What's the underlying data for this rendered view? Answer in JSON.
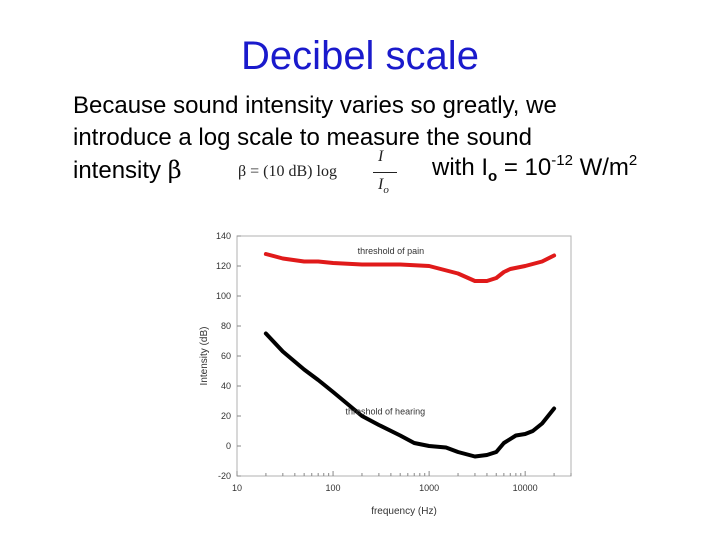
{
  "slide": {
    "title": "Decibel scale",
    "line1": "Because sound intensity varies so greatly, we",
    "line2": "introduce a log scale to measure the sound",
    "line3_text": "intensity ",
    "beta_symbol": "β",
    "formula": {
      "lhs": "β = (10 dB) log",
      "numerator": "I",
      "denominator": "I",
      "denominator_sub": "o"
    },
    "with_text": "with I",
    "with_sub": "o",
    "with_eq": " = 10",
    "with_exp": "-12",
    "with_unit": " W/m",
    "with_unit_exp": "2"
  },
  "colors": {
    "title": "#1a1acc",
    "pain_curve": "#e01a1a",
    "hearing_curve": "#000000"
  },
  "chart_data": {
    "type": "line",
    "xscale": "log",
    "xlabel": "frequency (Hz)",
    "ylabel": "Intensity (dB)",
    "xlim": [
      10,
      30000
    ],
    "ylim": [
      -20,
      140
    ],
    "xticks": [
      10,
      100,
      1000,
      10000
    ],
    "xtick_labels": [
      "10",
      "100",
      "1000",
      "10000"
    ],
    "yticks": [
      -20,
      0,
      20,
      40,
      60,
      80,
      100,
      120,
      140
    ],
    "ytick_labels": [
      "-20",
      "0",
      "20",
      "40",
      "60",
      "80",
      "100",
      "120",
      "140"
    ],
    "series": [
      {
        "name": "threshold of pain",
        "color": "#e01a1a",
        "x": [
          20,
          30,
          50,
          70,
          100,
          200,
          500,
          1000,
          2000,
          3000,
          4000,
          5000,
          6000,
          7000,
          10000,
          15000,
          20000
        ],
        "y": [
          128,
          125,
          123,
          123,
          122,
          121,
          121,
          120,
          115,
          110,
          110,
          112,
          116,
          118,
          120,
          123,
          127
        ]
      },
      {
        "name": "threshold of hearing",
        "color": "#000000",
        "x": [
          20,
          30,
          50,
          70,
          100,
          200,
          300,
          500,
          700,
          1000,
          1500,
          2000,
          3000,
          4000,
          5000,
          6000,
          8000,
          10000,
          12000,
          15000,
          20000
        ],
        "y": [
          75,
          63,
          51,
          44,
          36,
          20,
          14,
          7,
          2,
          0,
          -1,
          -4,
          -7,
          -6,
          -4,
          2,
          7,
          8,
          10,
          15,
          25
        ]
      }
    ],
    "annotations": [
      {
        "text": "threshold of pain",
        "x": 400,
        "y": 128
      },
      {
        "text": "threshold of hearing",
        "x": 350,
        "y": 21
      }
    ]
  }
}
